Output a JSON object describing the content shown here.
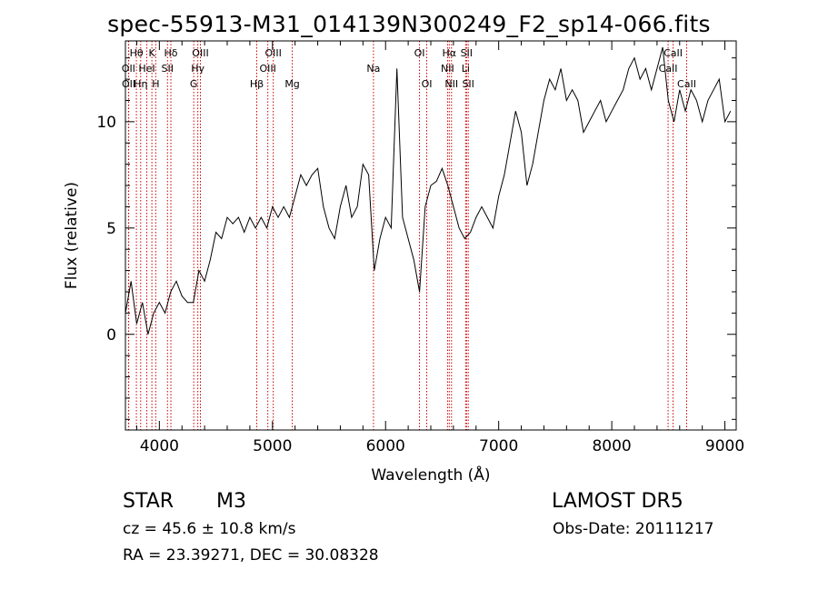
{
  "chart_data": {
    "type": "line",
    "title": "spec-55913-M31_014139N300249_F2_sp14-066.fits",
    "xlabel": "Wavelength (Å)",
    "ylabel": "Flux (relative)",
    "xlim": [
      3700,
      9100
    ],
    "ylim": [
      -4.5,
      13.8
    ],
    "xticks": [
      4000,
      5000,
      6000,
      7000,
      8000,
      9000
    ],
    "yticks": [
      0,
      5,
      10
    ],
    "grid": false,
    "line_color": "#000000",
    "marker_color": "#cc0000",
    "series": [
      {
        "x": [
          3700,
          3750,
          3800,
          3850,
          3900,
          3950,
          4000,
          4050,
          4100,
          4150,
          4200,
          4250,
          4300,
          4350,
          4400,
          4450,
          4500,
          4550,
          4600,
          4650,
          4700,
          4750,
          4800,
          4850,
          4900,
          4950,
          5000,
          5050,
          5100,
          5150,
          5200,
          5250,
          5300,
          5350,
          5400,
          5450,
          5500,
          5550,
          5600,
          5650,
          5700,
          5750,
          5800,
          5850,
          5900,
          5950,
          6000,
          6050,
          6100,
          6150,
          6200,
          6250,
          6300,
          6350,
          6400,
          6450,
          6500,
          6550,
          6600,
          6650,
          6700,
          6750,
          6800,
          6850,
          6900,
          6950,
          7000,
          7050,
          7100,
          7150,
          7200,
          7250,
          7300,
          7350,
          7400,
          7450,
          7500,
          7550,
          7600,
          7650,
          7700,
          7750,
          7800,
          7850,
          7900,
          7950,
          8000,
          8050,
          8100,
          8150,
          8200,
          8250,
          8300,
          8350,
          8400,
          8450,
          8500,
          8550,
          8600,
          8650,
          8700,
          8750,
          8800,
          8850,
          8900,
          8950,
          9000,
          9050
        ],
        "y": [
          1.0,
          2.5,
          0.5,
          1.5,
          0.0,
          1.0,
          1.5,
          1.0,
          2.0,
          2.5,
          1.8,
          1.5,
          1.5,
          3.0,
          2.5,
          3.5,
          4.8,
          4.5,
          5.5,
          5.2,
          5.5,
          4.8,
          5.5,
          5.0,
          5.5,
          5.0,
          6.0,
          5.5,
          6.0,
          5.5,
          6.5,
          7.5,
          7.0,
          7.5,
          7.8,
          6.0,
          5.0,
          4.5,
          6.0,
          7.0,
          5.5,
          6.0,
          8.0,
          7.5,
          3.0,
          4.5,
          5.5,
          5.0,
          12.5,
          5.5,
          4.5,
          3.5,
          2.0,
          6.0,
          7.0,
          7.2,
          7.8,
          7.0,
          6.0,
          5.0,
          4.5,
          4.8,
          5.5,
          6.0,
          5.5,
          5.0,
          6.5,
          7.5,
          9.0,
          10.5,
          9.5,
          7.0,
          8.0,
          9.5,
          11.0,
          12.0,
          11.5,
          12.5,
          11.0,
          11.5,
          11.0,
          9.5,
          10.0,
          10.5,
          11.0,
          10.0,
          10.5,
          11.0,
          11.5,
          12.5,
          13.0,
          12.0,
          12.5,
          11.5,
          12.5,
          13.5,
          11.0,
          10.0,
          11.5,
          10.5,
          11.5,
          11.0,
          10.0,
          11.0,
          11.5,
          12.0,
          10.0,
          10.5
        ]
      }
    ],
    "line_labels": [
      {
        "label": "Hθ",
        "wavelength": 3797,
        "row": 0
      },
      {
        "label": "K",
        "wavelength": 3934,
        "row": 0
      },
      {
        "label": "Hδ",
        "wavelength": 4102,
        "row": 0
      },
      {
        "label": "OIII",
        "wavelength": 4363,
        "row": 0
      },
      {
        "label": "OIII",
        "wavelength": 5007,
        "row": 0
      },
      {
        "label": "OI",
        "wavelength": 6300,
        "row": 0
      },
      {
        "label": "Hα",
        "wavelength": 6563,
        "row": 0
      },
      {
        "label": "SII",
        "wavelength": 6716,
        "row": 0
      },
      {
        "label": "CaII",
        "wavelength": 8542,
        "row": 0
      },
      {
        "label": "OII",
        "wavelength": 3727,
        "row": 1
      },
      {
        "label": "HeI",
        "wavelength": 3889,
        "row": 1
      },
      {
        "label": "SII",
        "wavelength": 4072,
        "row": 1
      },
      {
        "label": "Hγ",
        "wavelength": 4340,
        "row": 1
      },
      {
        "label": "OIII",
        "wavelength": 4959,
        "row": 1
      },
      {
        "label": "Na",
        "wavelength": 5893,
        "row": 1
      },
      {
        "label": "NII",
        "wavelength": 6548,
        "row": 1
      },
      {
        "label": "Li",
        "wavelength": 6708,
        "row": 1
      },
      {
        "label": "CaII",
        "wavelength": 8498,
        "row": 1
      },
      {
        "label": "OII",
        "wavelength": 3729,
        "row": 2
      },
      {
        "label": "Hη",
        "wavelength": 3835,
        "row": 2
      },
      {
        "label": "H",
        "wavelength": 3968,
        "row": 2
      },
      {
        "label": "G",
        "wavelength": 4304,
        "row": 2
      },
      {
        "label": "Hβ",
        "wavelength": 4861,
        "row": 2
      },
      {
        "label": "Mg",
        "wavelength": 5175,
        "row": 2
      },
      {
        "label": "OI",
        "wavelength": 6364,
        "row": 2
      },
      {
        "label": "NII",
        "wavelength": 6583,
        "row": 2
      },
      {
        "label": "SII",
        "wavelength": 6731,
        "row": 2
      },
      {
        "label": "CaII",
        "wavelength": 8662,
        "row": 2
      }
    ],
    "marker_wavelengths": [
      3727,
      3729,
      3797,
      3835,
      3889,
      3934,
      3968,
      4072,
      4102,
      4304,
      4340,
      4363,
      4861,
      4959,
      5007,
      5175,
      5893,
      6300,
      6364,
      6548,
      6563,
      6583,
      6708,
      6716,
      6731,
      8498,
      8542,
      8662
    ]
  },
  "info": {
    "object_type": "STAR",
    "object_name": "M3",
    "survey": "LAMOST  DR5",
    "cz": "cz = 45.6 ± 10.8 km/s",
    "obs_date": "Obs-Date: 20111217",
    "coords": "RA =  23.39271, DEC =  30.08328"
  }
}
